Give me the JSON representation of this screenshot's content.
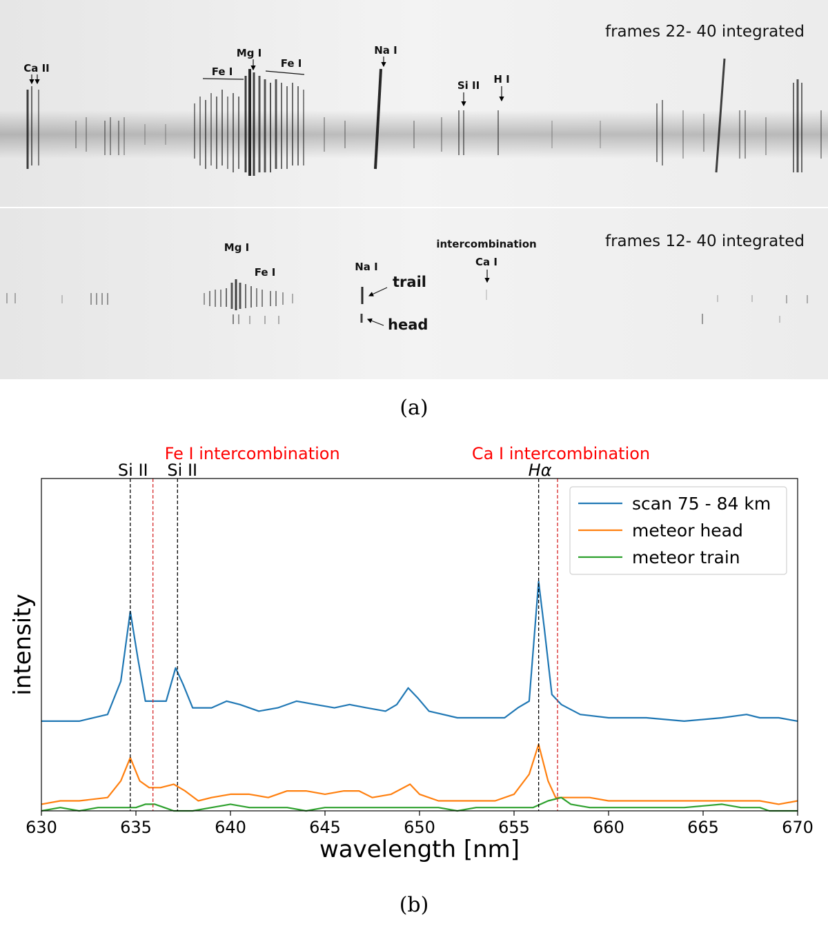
{
  "spectrum_images": {
    "upper": {
      "title": "frames 22- 40 integrated",
      "labels": [
        "Ca II",
        "Fe I",
        "Mg I",
        "Fe I",
        "Na I",
        "Si II",
        "H I"
      ]
    },
    "lower": {
      "title": "frames 12- 40 integrated",
      "labels": [
        "Mg I",
        "Fe I",
        "Na I",
        "trail",
        "head",
        "intercombination",
        "Ca I"
      ]
    }
  },
  "captions": {
    "a": "(a)",
    "b": "(b)"
  },
  "colors": {
    "scan": "#1f77b4",
    "head": "#ff7f0e",
    "train": "#2ca02c",
    "black_line": "#000000",
    "red_line": "#d62728",
    "red_text": "#ff0000"
  },
  "chart_data": {
    "type": "line",
    "xlabel": "wavelength [nm]",
    "ylabel": "intensity",
    "xlim": [
      630,
      670
    ],
    "xticks": [
      630,
      635,
      640,
      645,
      650,
      655,
      660,
      665,
      670
    ],
    "ylim": [
      0,
      1
    ],
    "grid": false,
    "legend_position": "top-right",
    "series": [
      {
        "name": "scan 75 - 84 km",
        "color": "#1f77b4",
        "points": [
          [
            630,
            0.27
          ],
          [
            632,
            0.27
          ],
          [
            633.5,
            0.29
          ],
          [
            634.2,
            0.39
          ],
          [
            634.7,
            0.6
          ],
          [
            635.1,
            0.46
          ],
          [
            635.5,
            0.33
          ],
          [
            636,
            0.33
          ],
          [
            636.6,
            0.33
          ],
          [
            637.1,
            0.43
          ],
          [
            637.5,
            0.38
          ],
          [
            638,
            0.31
          ],
          [
            638.5,
            0.31
          ],
          [
            639,
            0.31
          ],
          [
            639.8,
            0.33
          ],
          [
            640.5,
            0.32
          ],
          [
            641.5,
            0.3
          ],
          [
            642.5,
            0.31
          ],
          [
            643.5,
            0.33
          ],
          [
            644.5,
            0.32
          ],
          [
            645.5,
            0.31
          ],
          [
            646.3,
            0.32
          ],
          [
            647.2,
            0.31
          ],
          [
            648.2,
            0.3
          ],
          [
            648.8,
            0.32
          ],
          [
            649.4,
            0.37
          ],
          [
            649.9,
            0.34
          ],
          [
            650.5,
            0.3
          ],
          [
            652,
            0.28
          ],
          [
            653.5,
            0.28
          ],
          [
            654.5,
            0.28
          ],
          [
            655.2,
            0.31
          ],
          [
            655.8,
            0.33
          ],
          [
            656.3,
            0.69
          ],
          [
            656.6,
            0.55
          ],
          [
            657,
            0.35
          ],
          [
            657.5,
            0.32
          ],
          [
            658.5,
            0.29
          ],
          [
            660,
            0.28
          ],
          [
            662,
            0.28
          ],
          [
            664,
            0.27
          ],
          [
            666,
            0.28
          ],
          [
            667.3,
            0.29
          ],
          [
            668,
            0.28
          ],
          [
            669,
            0.28
          ],
          [
            670,
            0.27
          ]
        ]
      },
      {
        "name": "meteor head",
        "color": "#ff7f0e",
        "points": [
          [
            630,
            0.02
          ],
          [
            631,
            0.03
          ],
          [
            632,
            0.03
          ],
          [
            633.5,
            0.04
          ],
          [
            634.2,
            0.09
          ],
          [
            634.7,
            0.16
          ],
          [
            635.2,
            0.09
          ],
          [
            635.7,
            0.07
          ],
          [
            636.3,
            0.07
          ],
          [
            637,
            0.08
          ],
          [
            637.6,
            0.06
          ],
          [
            638.3,
            0.03
          ],
          [
            639,
            0.04
          ],
          [
            640,
            0.05
          ],
          [
            641,
            0.05
          ],
          [
            642,
            0.04
          ],
          [
            643,
            0.06
          ],
          [
            644,
            0.06
          ],
          [
            645,
            0.05
          ],
          [
            646,
            0.06
          ],
          [
            646.8,
            0.06
          ],
          [
            647.5,
            0.04
          ],
          [
            648.5,
            0.05
          ],
          [
            649.5,
            0.08
          ],
          [
            650,
            0.05
          ],
          [
            651,
            0.03
          ],
          [
            652,
            0.03
          ],
          [
            653,
            0.03
          ],
          [
            654,
            0.03
          ],
          [
            655,
            0.05
          ],
          [
            655.8,
            0.11
          ],
          [
            656.3,
            0.2
          ],
          [
            656.8,
            0.09
          ],
          [
            657.2,
            0.04
          ],
          [
            658,
            0.04
          ],
          [
            659,
            0.04
          ],
          [
            660,
            0.03
          ],
          [
            662,
            0.03
          ],
          [
            664,
            0.03
          ],
          [
            666,
            0.03
          ],
          [
            668,
            0.03
          ],
          [
            669,
            0.02
          ],
          [
            670,
            0.03
          ]
        ]
      },
      {
        "name": "meteor train",
        "color": "#2ca02c",
        "points": [
          [
            630,
            0.0
          ],
          [
            631,
            0.01
          ],
          [
            632,
            0.0
          ],
          [
            633,
            0.01
          ],
          [
            634,
            0.01
          ],
          [
            635,
            0.01
          ],
          [
            635.5,
            0.02
          ],
          [
            636,
            0.02
          ],
          [
            636.5,
            0.01
          ],
          [
            637,
            0.0
          ],
          [
            638,
            0.0
          ],
          [
            639,
            0.01
          ],
          [
            640,
            0.02
          ],
          [
            641,
            0.01
          ],
          [
            642,
            0.01
          ],
          [
            643,
            0.01
          ],
          [
            644,
            0.0
          ],
          [
            645,
            0.01
          ],
          [
            646,
            0.01
          ],
          [
            647,
            0.01
          ],
          [
            648,
            0.01
          ],
          [
            649,
            0.01
          ],
          [
            650,
            0.01
          ],
          [
            651,
            0.01
          ],
          [
            652,
            0.0
          ],
          [
            653,
            0.01
          ],
          [
            654,
            0.01
          ],
          [
            655,
            0.01
          ],
          [
            656,
            0.01
          ],
          [
            656.8,
            0.03
          ],
          [
            657.5,
            0.04
          ],
          [
            658,
            0.02
          ],
          [
            659,
            0.01
          ],
          [
            660,
            0.01
          ],
          [
            662,
            0.01
          ],
          [
            664,
            0.01
          ],
          [
            666,
            0.02
          ],
          [
            667,
            0.01
          ],
          [
            668,
            0.01
          ],
          [
            668.5,
            0.0
          ],
          [
            670,
            0.0
          ]
        ]
      }
    ],
    "annotations": [
      {
        "x": 634.7,
        "label": "Si II",
        "color": "black"
      },
      {
        "x": 635.9,
        "label": "Fe I intercombination",
        "color": "red"
      },
      {
        "x": 637.2,
        "label": "Si II",
        "color": "black"
      },
      {
        "x": 656.3,
        "label": "Hα",
        "color": "black"
      },
      {
        "x": 657.3,
        "label": "Ca I intercombination",
        "color": "red"
      }
    ]
  }
}
